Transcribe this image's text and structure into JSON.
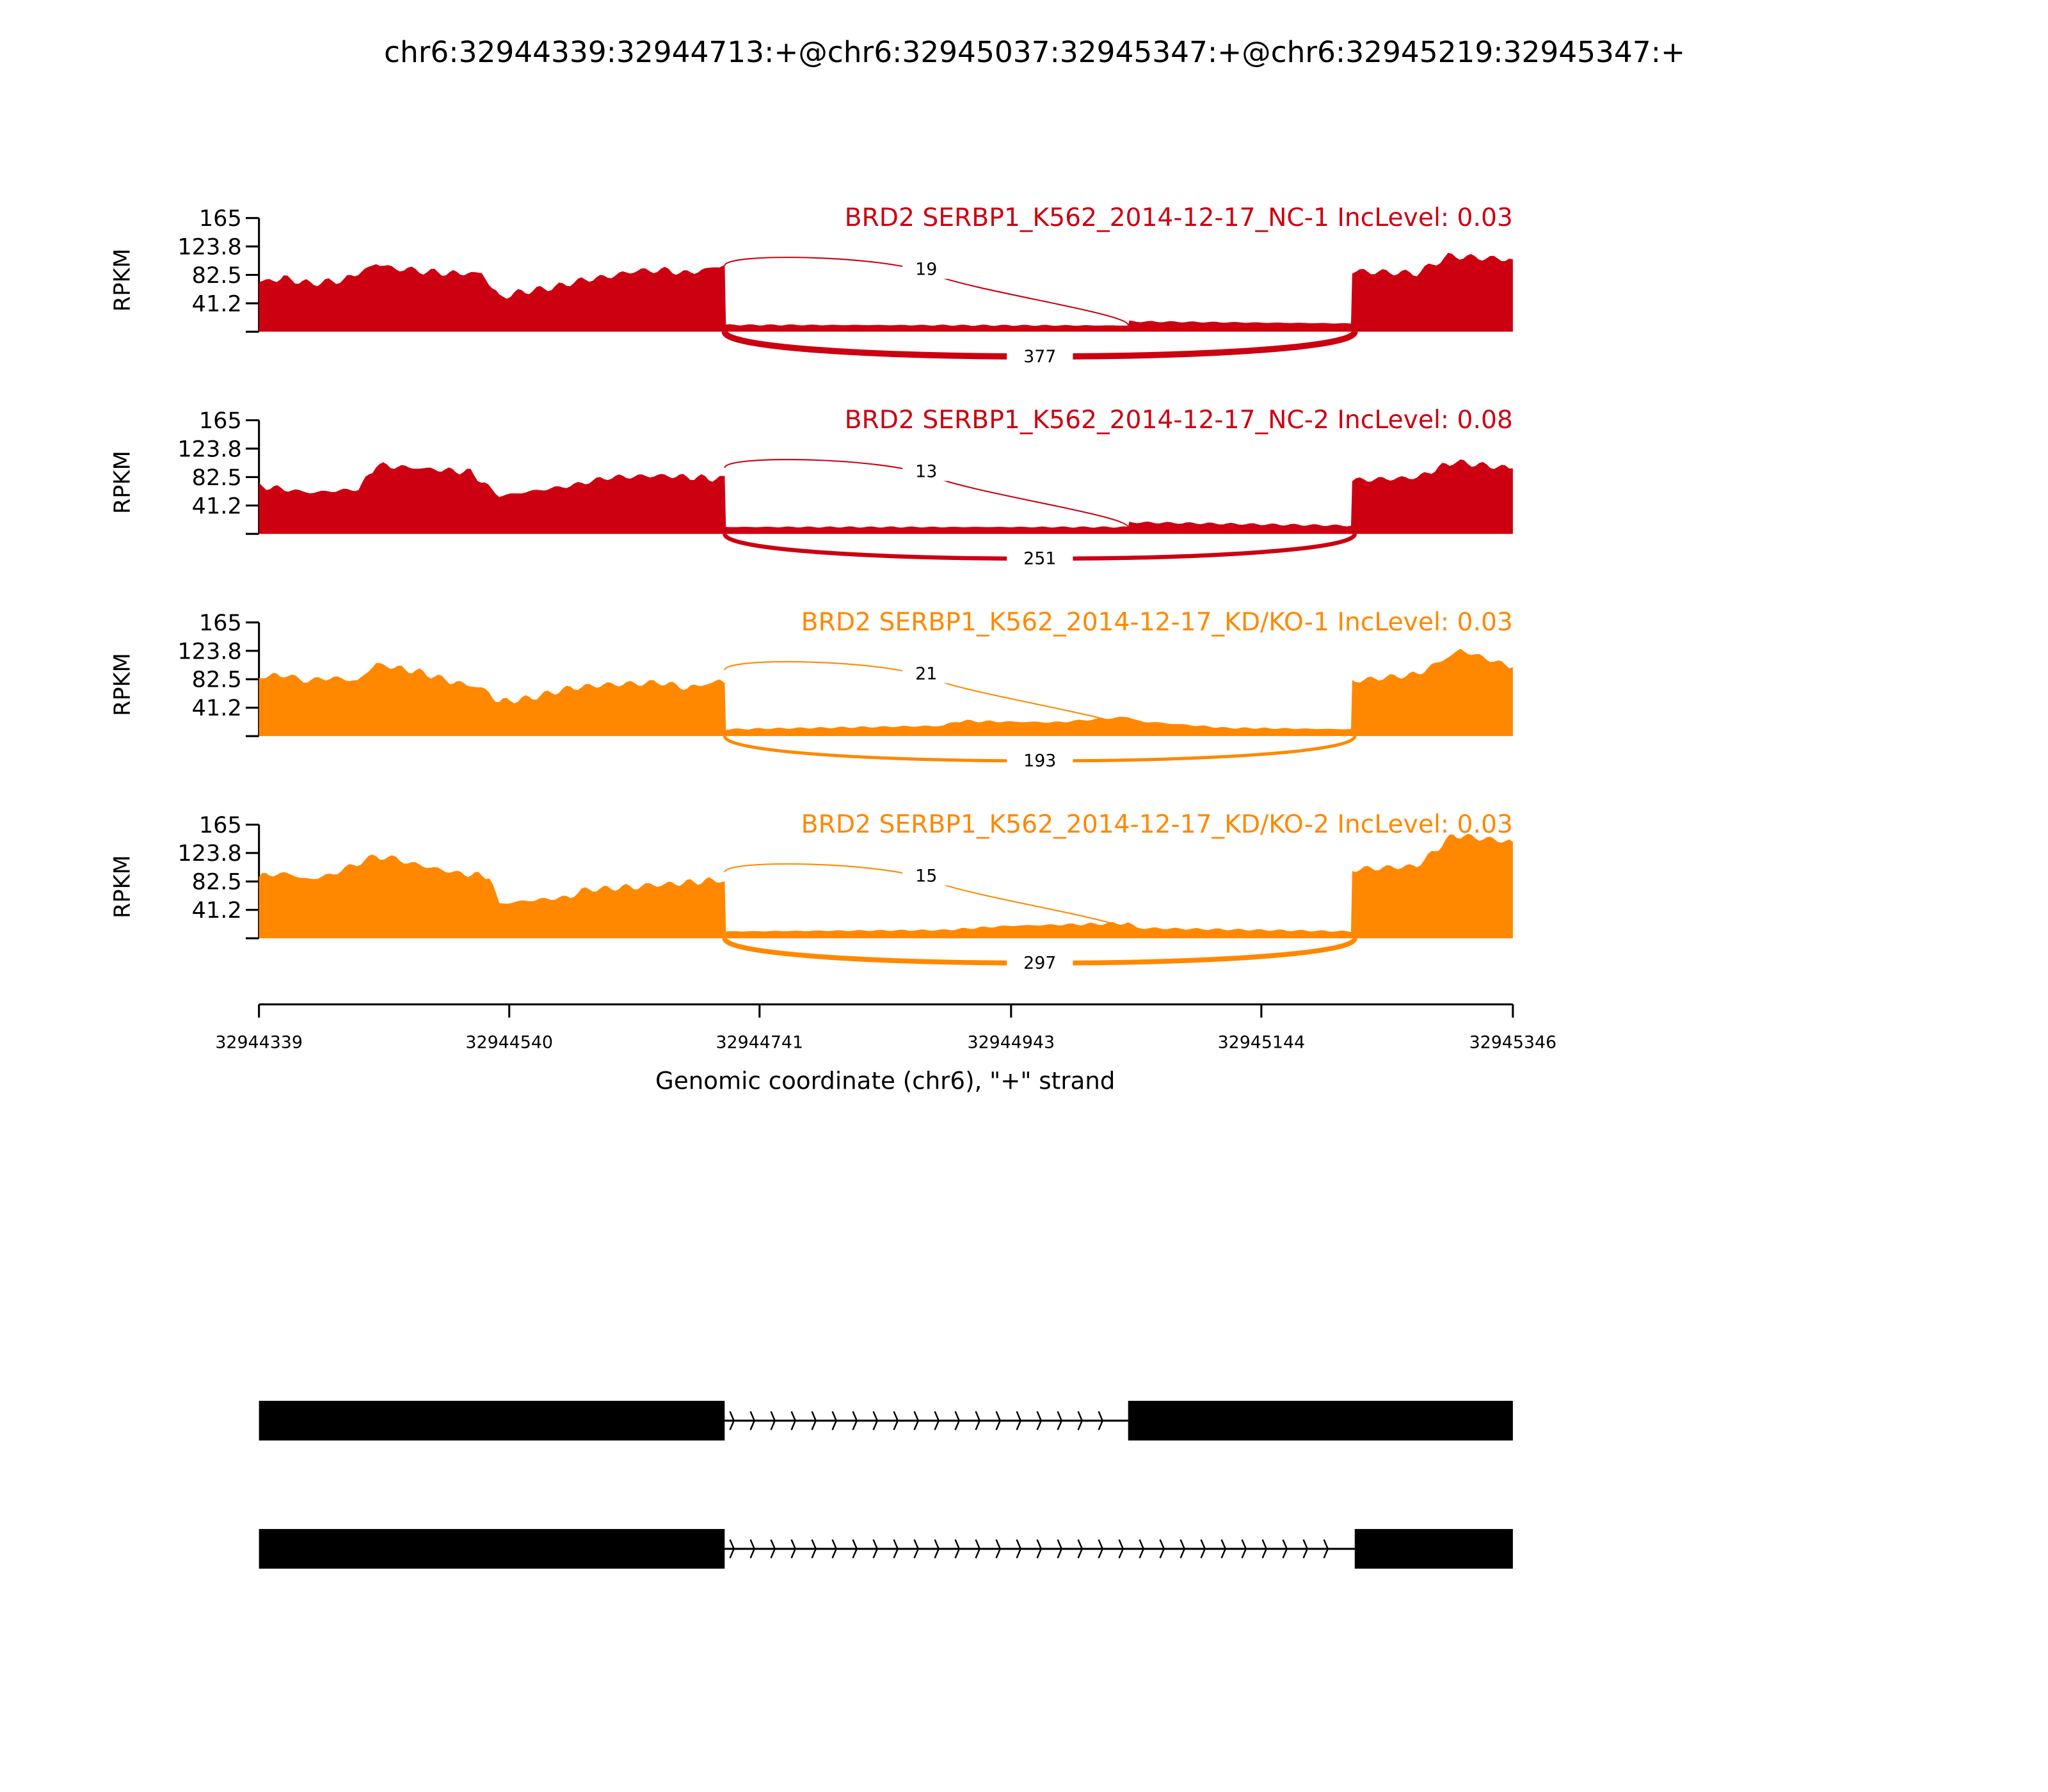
{
  "chart_data": {
    "type": "area",
    "title": "chr6:32944339:32944713:+@chr6:32945037:32945347:+@chr6:32945219:32945347:+",
    "xlabel": "Genomic coordinate (chr6), \"+\" strand",
    "ylabel": "RPKM",
    "xlim": [
      32944339,
      32945346
    ],
    "xticks": [
      "32944339",
      "32944540",
      "32944741",
      "32944943",
      "32945144",
      "32945346"
    ],
    "ylim": [
      0,
      165
    ],
    "yticks": [
      "165",
      "123.8",
      "82.5",
      "41.2"
    ],
    "coverage_offset_origin": 32944339,
    "junction_sites": {
      "donor": 32944713,
      "inclusion_acceptor": 32945037,
      "skip_acceptor": 32945219
    },
    "series": [
      {
        "name": "BRD2 SERBP1_K562_2014-12-17_NC-1 IncLevel: 0.03",
        "color": "#cc0011",
        "inclusion_count": "19",
        "skip_count": "377",
        "points": [
          [
            0,
            72
          ],
          [
            20,
            78
          ],
          [
            41,
            70
          ],
          [
            68,
            75
          ],
          [
            94,
            98
          ],
          [
            110,
            92
          ],
          [
            132,
            88
          ],
          [
            153,
            85
          ],
          [
            179,
            85
          ],
          [
            193,
            50
          ],
          [
            211,
            58
          ],
          [
            238,
            65
          ],
          [
            259,
            75
          ],
          [
            280,
            80
          ],
          [
            301,
            88
          ],
          [
            323,
            90
          ],
          [
            344,
            85
          ],
          [
            370,
            95
          ],
          [
            374,
            95
          ],
          [
            375,
            10
          ],
          [
            698,
            9
          ],
          [
            699,
            15
          ],
          [
            877,
            12
          ],
          [
            878,
            88
          ],
          [
            930,
            85
          ],
          [
            955,
            110
          ],
          [
            1007,
            105
          ]
        ]
      },
      {
        "name": "BRD2 SERBP1_K562_2014-12-17_NC-2 IncLevel: 0.08",
        "color": "#cc0011",
        "inclusion_count": "13",
        "skip_count": "251",
        "points": [
          [
            0,
            70
          ],
          [
            41,
            60
          ],
          [
            80,
            65
          ],
          [
            94,
            100
          ],
          [
            132,
            95
          ],
          [
            170,
            90
          ],
          [
            193,
            55
          ],
          [
            211,
            60
          ],
          [
            250,
            70
          ],
          [
            280,
            82
          ],
          [
            323,
            85
          ],
          [
            370,
            80
          ],
          [
            374,
            80
          ],
          [
            375,
            10
          ],
          [
            698,
            10
          ],
          [
            699,
            17
          ],
          [
            877,
            12
          ],
          [
            878,
            78
          ],
          [
            930,
            82
          ],
          [
            959,
            105
          ],
          [
            1007,
            95
          ]
        ]
      },
      {
        "name": "BRD2 SERBP1_K562_2014-12-17_KD/KO-1 IncLevel: 0.03",
        "color": "#ff8800",
        "inclusion_count": "21",
        "skip_count": "193",
        "points": [
          [
            0,
            85
          ],
          [
            20,
            90
          ],
          [
            36,
            80
          ],
          [
            57,
            85
          ],
          [
            79,
            80
          ],
          [
            94,
            105
          ],
          [
            132,
            92
          ],
          [
            153,
            80
          ],
          [
            179,
            70
          ],
          [
            193,
            50
          ],
          [
            217,
            55
          ],
          [
            250,
            70
          ],
          [
            280,
            75
          ],
          [
            323,
            78
          ],
          [
            344,
            70
          ],
          [
            370,
            80
          ],
          [
            374,
            80
          ],
          [
            375,
            10
          ],
          [
            550,
            15
          ],
          [
            560,
            22
          ],
          [
            640,
            20
          ],
          [
            698,
            28
          ],
          [
            705,
            22
          ],
          [
            776,
            12
          ],
          [
            877,
            10
          ],
          [
            878,
            80
          ],
          [
            930,
            90
          ],
          [
            965,
            125
          ],
          [
            1007,
            100
          ]
        ]
      },
      {
        "name": "BRD2 SERBP1_K562_2014-12-17_KD/KO-2 IncLevel: 0.03",
        "color": "#ff8800",
        "inclusion_count": "15",
        "skip_count": "297",
        "points": [
          [
            0,
            90
          ],
          [
            20,
            95
          ],
          [
            41,
            85
          ],
          [
            57,
            92
          ],
          [
            94,
            120
          ],
          [
            110,
            115
          ],
          [
            132,
            105
          ],
          [
            159,
            95
          ],
          [
            185,
            90
          ],
          [
            193,
            50
          ],
          [
            217,
            55
          ],
          [
            250,
            60
          ],
          [
            259,
            70
          ],
          [
            301,
            75
          ],
          [
            323,
            78
          ],
          [
            370,
            85
          ],
          [
            374,
            85
          ],
          [
            375,
            10
          ],
          [
            550,
            12
          ],
          [
            600,
            18
          ],
          [
            698,
            22
          ],
          [
            705,
            15
          ],
          [
            877,
            10
          ],
          [
            878,
            100
          ],
          [
            930,
            105
          ],
          [
            959,
            150
          ],
          [
            1007,
            140
          ]
        ]
      }
    ],
    "isoforms": [
      {
        "exons": [
          [
            32944339,
            32944713
          ],
          [
            32945037,
            32945346
          ]
        ]
      },
      {
        "exons": [
          [
            32944339,
            32944713
          ],
          [
            32945219,
            32945346
          ]
        ]
      }
    ]
  }
}
